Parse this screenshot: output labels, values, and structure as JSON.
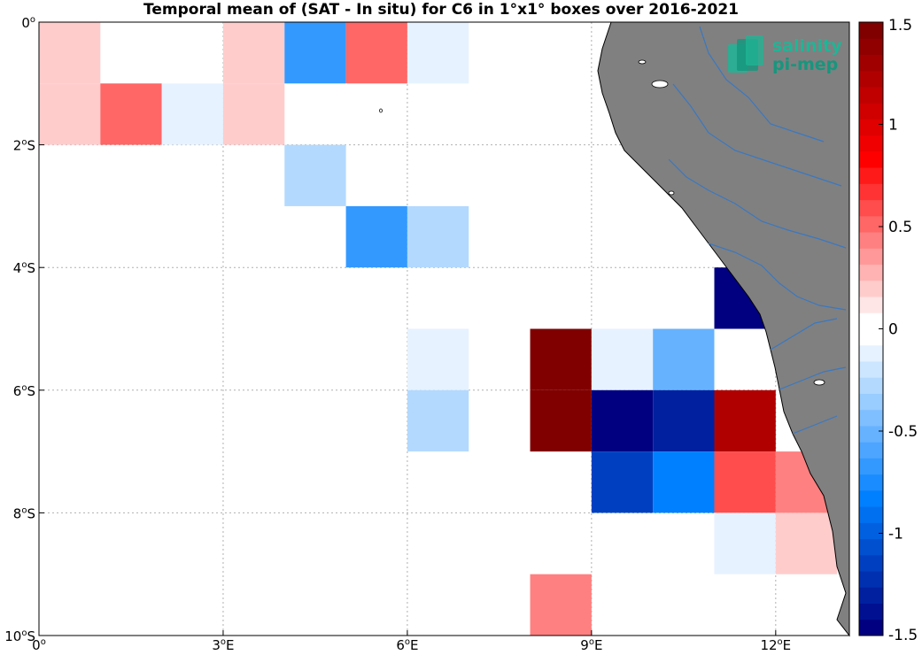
{
  "title": "Temporal mean of (SAT - In situ) for C6 in 1°x1° boxes over 2016-2021",
  "logo": {
    "line1": "salinity",
    "line2": "pi-mep"
  },
  "map": {
    "lon_range": [
      0,
      13.2
    ],
    "lat_range": [
      -10,
      0
    ],
    "x_ticks": [
      {
        "value": 0,
        "label": "0",
        "sup": "o",
        "suffix": ""
      },
      {
        "value": 3,
        "label": "3",
        "sup": "o",
        "suffix": "E"
      },
      {
        "value": 6,
        "label": "6",
        "sup": "o",
        "suffix": "E"
      },
      {
        "value": 9,
        "label": "9",
        "sup": "o",
        "suffix": "E"
      },
      {
        "value": 12,
        "label": "12",
        "sup": "o",
        "suffix": "E"
      }
    ],
    "y_ticks": [
      {
        "value": 0,
        "label": "0",
        "sup": "o",
        "suffix": ""
      },
      {
        "value": -2,
        "label": "2",
        "sup": "o",
        "suffix": "S"
      },
      {
        "value": -4,
        "label": "4",
        "sup": "o",
        "suffix": "S"
      },
      {
        "value": -6,
        "label": "6",
        "sup": "o",
        "suffix": "S"
      },
      {
        "value": -8,
        "label": "8",
        "sup": "o",
        "suffix": "S"
      },
      {
        "value": -10,
        "label": "10",
        "sup": "o",
        "suffix": "S"
      }
    ],
    "land_color": "#808080",
    "river_color": "#3a78c0"
  },
  "chart_data": {
    "type": "heatmap",
    "title": "Temporal mean of (SAT - In situ) for C6 in 1°x1° boxes over 2016-2021",
    "xlim": [
      0,
      13.2
    ],
    "ylim": [
      -10,
      0
    ],
    "grid": true,
    "cells": [
      {
        "lon": 0,
        "lat": 0,
        "value": 0.2
      },
      {
        "lon": 3,
        "lat": 0,
        "value": 0.2
      },
      {
        "lon": 4,
        "lat": 0,
        "value": -0.7
      },
      {
        "lon": 5,
        "lat": 0,
        "value": 0.55
      },
      {
        "lon": 6,
        "lat": 0,
        "value": -0.15
      },
      {
        "lon": 0,
        "lat": -1,
        "value": 0.2
      },
      {
        "lon": 1,
        "lat": -1,
        "value": 0.55
      },
      {
        "lon": 2,
        "lat": -1,
        "value": -0.15
      },
      {
        "lon": 3,
        "lat": -1,
        "value": 0.2
      },
      {
        "lon": 4,
        "lat": -2,
        "value": -0.3
      },
      {
        "lon": 5,
        "lat": -3,
        "value": -0.7
      },
      {
        "lon": 6,
        "lat": -3,
        "value": -0.3
      },
      {
        "lon": 11,
        "lat": -4,
        "value": -1.55
      },
      {
        "lon": 6,
        "lat": -5,
        "value": -0.15
      },
      {
        "lon": 8,
        "lat": -5,
        "value": 1.5
      },
      {
        "lon": 9,
        "lat": -5,
        "value": -0.15
      },
      {
        "lon": 10,
        "lat": -5,
        "value": -0.55
      },
      {
        "lon": 6,
        "lat": -6,
        "value": -0.3
      },
      {
        "lon": 8,
        "lat": -6,
        "value": 1.5
      },
      {
        "lon": 9,
        "lat": -6,
        "value": -1.5
      },
      {
        "lon": 10,
        "lat": -6,
        "value": -1.3
      },
      {
        "lon": 11,
        "lat": -6,
        "value": 1.25
      },
      {
        "lon": 9,
        "lat": -7,
        "value": -1.15
      },
      {
        "lon": 10,
        "lat": -7,
        "value": -0.85
      },
      {
        "lon": 11,
        "lat": -7,
        "value": 0.6
      },
      {
        "lon": 12,
        "lat": -7,
        "value": 0.4
      },
      {
        "lon": 11,
        "lat": -8,
        "value": -0.15
      },
      {
        "lon": 12,
        "lat": -8,
        "value": 0.2
      },
      {
        "lon": 8,
        "lat": -9,
        "value": 0.4
      }
    ],
    "colorbar": {
      "range": [
        -1.5,
        1.5
      ],
      "tick_values": [
        1.5,
        1,
        0.5,
        0,
        -0.5,
        -1,
        -1.5
      ],
      "tick_labels": [
        "1.5",
        "1",
        "0.5",
        "0",
        "-0.5",
        "-1",
        "-1.5"
      ],
      "colors": [
        "#000080",
        "#001090",
        "#0020a0",
        "#0030b0",
        "#0040c0",
        "#0050d0",
        "#0060e0",
        "#0070f0",
        "#0080ff",
        "#1a8cff",
        "#3399ff",
        "#4da5ff",
        "#66b2ff",
        "#80bfff",
        "#99ccff",
        "#b3d9ff",
        "#cce6ff",
        "#e6f2ff",
        "#ffffff",
        "#ffffff",
        "#ffe6e6",
        "#ffcccc",
        "#ffb3b3",
        "#ff9999",
        "#ff8080",
        "#ff6666",
        "#ff4d4d",
        "#ff3333",
        "#ff1a1a",
        "#ff0000",
        "#f00000",
        "#e00000",
        "#d00000",
        "#c00000",
        "#b00000",
        "#a00000",
        "#900000",
        "#800000"
      ]
    }
  }
}
